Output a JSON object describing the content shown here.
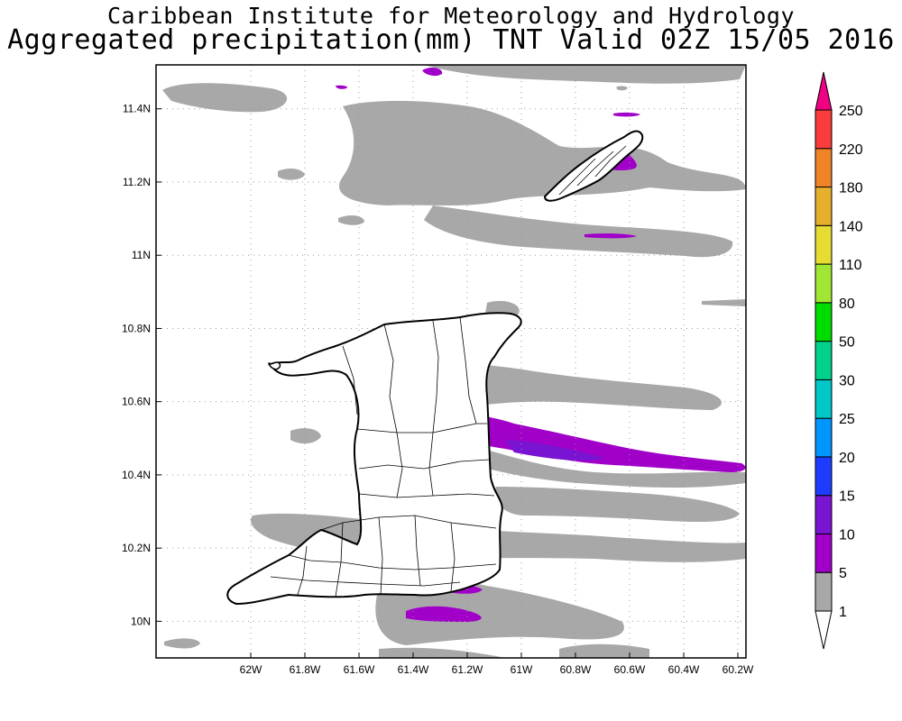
{
  "title": {
    "line1": "Caribbean Institute for Meteorology and Hydrology",
    "line2": "Aggregated precipitation(mm) TNT Valid 02Z 15/05 2016"
  },
  "map": {
    "lon_range": [
      -62.35,
      -60.17
    ],
    "lat_range": [
      9.9,
      11.52
    ],
    "x_ticks": [
      {
        "value": -62.0,
        "label": "62W"
      },
      {
        "value": -61.8,
        "label": "61.8W"
      },
      {
        "value": -61.6,
        "label": "61.6W"
      },
      {
        "value": -61.4,
        "label": "61.4W"
      },
      {
        "value": -61.2,
        "label": "61.2W"
      },
      {
        "value": -61.0,
        "label": "61W"
      },
      {
        "value": -60.8,
        "label": "60.8W"
      },
      {
        "value": -60.6,
        "label": "60.6W"
      },
      {
        "value": -60.4,
        "label": "60.4W"
      },
      {
        "value": -60.2,
        "label": "60.2W"
      }
    ],
    "y_ticks": [
      {
        "value": 10.0,
        "label": "10N"
      },
      {
        "value": 10.2,
        "label": "10.2N"
      },
      {
        "value": 10.4,
        "label": "10.4N"
      },
      {
        "value": 10.6,
        "label": "10.6N"
      },
      {
        "value": 10.8,
        "label": "10.8N"
      },
      {
        "value": 11.0,
        "label": "11N"
      },
      {
        "value": 11.2,
        "label": "11.2N"
      },
      {
        "value": 11.4,
        "label": "11.4N"
      }
    ],
    "grid": "dotted",
    "colors": {
      "band_1_5": "#a8a8a8",
      "band_5_10": "#a000c8",
      "band_10_15": "#7814d2",
      "land": "#ffffff",
      "coast": "#000000"
    }
  },
  "legend": {
    "position": "right",
    "levels": [
      "1",
      "5",
      "10",
      "15",
      "20",
      "25",
      "30",
      "50",
      "80",
      "110",
      "140",
      "180",
      "220",
      "250"
    ],
    "colors": [
      "#a8a8a8",
      "#a000c8",
      "#7814d2",
      "#1e3cff",
      "#0096ff",
      "#00c8c8",
      "#00d28c",
      "#00dc00",
      "#a0e632",
      "#e6dc32",
      "#e6af2d",
      "#f08228",
      "#fa3c3c",
      "#f00082"
    ]
  }
}
